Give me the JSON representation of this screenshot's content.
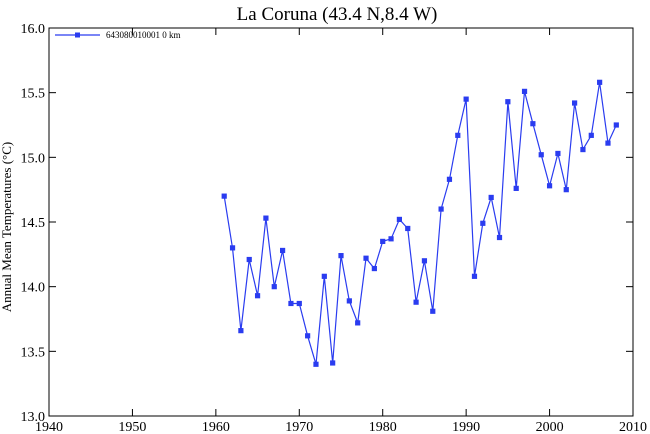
{
  "chart_data": {
    "type": "line",
    "title": "La Coruna (43.4 N,8.4 W)",
    "ylabel": "Annual Mean Temperatures (°C)",
    "xlabel": "",
    "xlim": [
      1940,
      2010
    ],
    "ylim": [
      13.0,
      16.0
    ],
    "x_ticks": [
      "1940",
      "1950",
      "1960",
      "1970",
      "1980",
      "1990",
      "2000",
      "2010"
    ],
    "y_ticks": [
      "13.0",
      "13.5",
      "14.0",
      "14.5",
      "15.0",
      "15.5",
      "16.0"
    ],
    "grid": false,
    "legend_position": "top-left",
    "series": [
      {
        "name": "643080010001  0 km",
        "color": "#2a3cf0",
        "marker": "square",
        "x": [
          1961,
          1962,
          1963,
          1964,
          1965,
          1966,
          1967,
          1968,
          1969,
          1970,
          1971,
          1972,
          1973,
          1974,
          1975,
          1976,
          1977,
          1978,
          1979,
          1980,
          1981,
          1982,
          1983,
          1984,
          1985,
          1986,
          1987,
          1988,
          1989,
          1990,
          1991,
          1992,
          1993,
          1994,
          1995,
          1996,
          1997,
          1998,
          1999,
          2000,
          2001,
          2002,
          2003,
          2004,
          2005,
          2006,
          2007,
          2008
        ],
        "y": [
          14.7,
          14.3,
          13.66,
          14.21,
          13.93,
          14.53,
          14.0,
          14.28,
          13.87,
          13.87,
          13.62,
          13.4,
          14.08,
          13.41,
          14.24,
          13.89,
          13.72,
          14.22,
          14.14,
          14.35,
          14.37,
          14.52,
          14.45,
          13.88,
          14.2,
          13.81,
          14.6,
          14.83,
          15.17,
          15.45,
          14.08,
          14.49,
          14.69,
          14.38,
          15.43,
          14.76,
          15.51,
          15.26,
          15.02,
          14.78,
          15.03,
          14.75,
          15.42,
          15.06,
          15.17,
          15.58,
          15.11,
          15.25
        ]
      }
    ]
  }
}
